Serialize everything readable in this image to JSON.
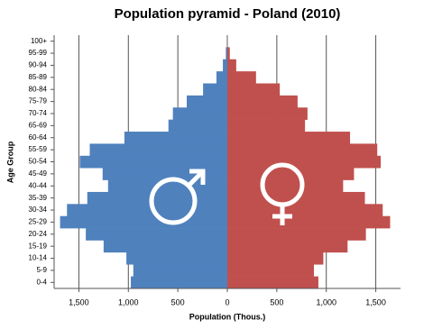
{
  "chart_data": {
    "type": "pyramid",
    "title": "Population pyramid - Poland (2010)",
    "x_label": "Population (Thous.)",
    "y_label": "Age Group",
    "categories": [
      "0-4",
      "5-9",
      "10-14",
      "15-19",
      "20-24",
      "25-29",
      "30-34",
      "35-39",
      "40-44",
      "45-49",
      "50-54",
      "55-59",
      "60-64",
      "65-69",
      "70-74",
      "75-79",
      "80-84",
      "85-89",
      "90-94",
      "95-99",
      "100+"
    ],
    "series": [
      {
        "name": "Male",
        "color": "#4f81bd",
        "values": [
          -975,
          -950,
          -1020,
          -1250,
          -1430,
          -1690,
          -1620,
          -1415,
          -1205,
          -1260,
          -1490,
          -1390,
          -1040,
          -595,
          -550,
          -410,
          -245,
          -110,
          -45,
          -15,
          -1
        ]
      },
      {
        "name": "Female",
        "color": "#c0504d",
        "values": [
          920,
          875,
          970,
          1215,
          1400,
          1645,
          1570,
          1390,
          1170,
          1280,
          1550,
          1515,
          1240,
          785,
          810,
          710,
          530,
          290,
          90,
          25,
          2
        ]
      }
    ],
    "xlim": [
      -1750,
      1750
    ],
    "xticks": [
      {
        "value": -1500,
        "label": "1,500"
      },
      {
        "value": -1000,
        "label": "1,000"
      },
      {
        "value": -500,
        "label": "500"
      },
      0,
      500,
      {
        "value": 1000,
        "label": "1,000"
      },
      {
        "value": 1500,
        "label": "1,500"
      }
    ],
    "grid": true
  }
}
